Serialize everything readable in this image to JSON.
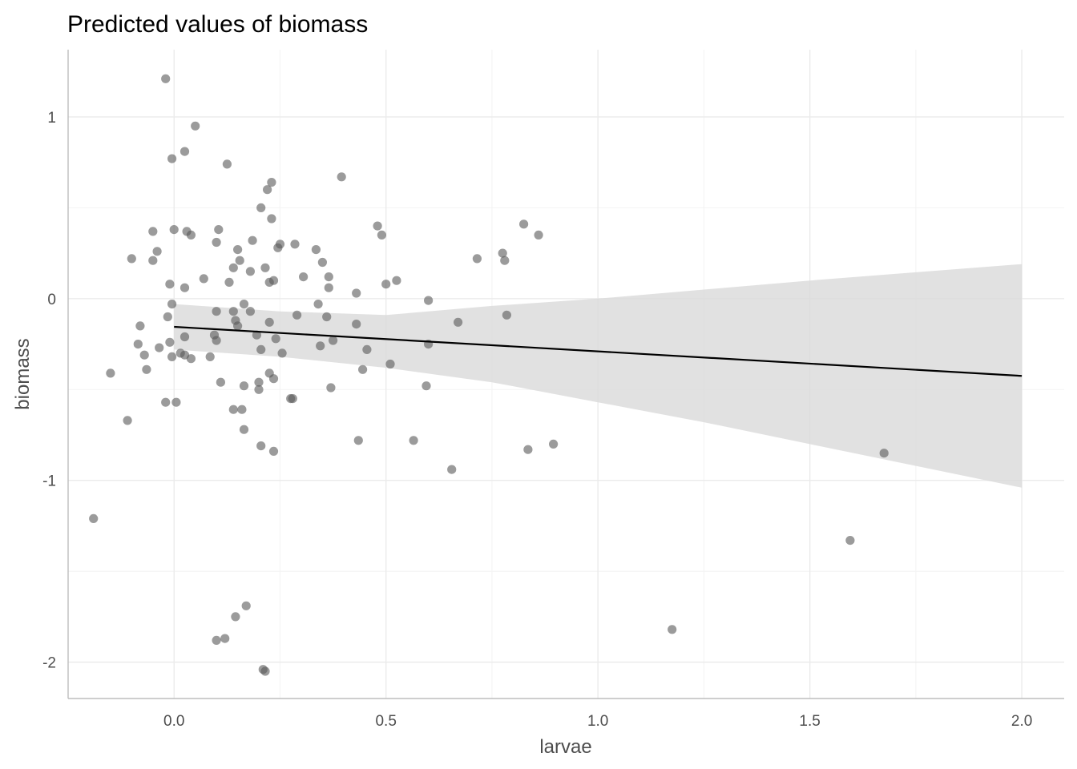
{
  "chart_data": {
    "type": "scatter",
    "title": "Predicted values of biomass",
    "xlabel": "larvae",
    "ylabel": "biomass",
    "xlim": [
      -0.25,
      2.1
    ],
    "ylim": [
      -2.2,
      1.37
    ],
    "x_ticks": [
      0.0,
      0.5,
      1.0,
      1.5,
      2.0
    ],
    "x_tick_labels": [
      "0.0",
      "0.5",
      "1.0",
      "1.5",
      "2.0"
    ],
    "y_ticks": [
      -2,
      -1,
      0,
      1
    ],
    "y_tick_labels": [
      "-2",
      "-1",
      "0",
      "1"
    ],
    "grid": true,
    "legend": "none",
    "colors": {
      "points": "#595959",
      "fit_line": "#000000",
      "ribbon": "#d9d9d9",
      "grid_major": "#ebebeb",
      "grid_minor": "#f4f4f4",
      "axis_line": "#bdbdbd"
    },
    "points": [
      [
        -0.02,
        1.21
      ],
      [
        0.05,
        0.95
      ],
      [
        0.025,
        0.81
      ],
      [
        -0.005,
        0.77
      ],
      [
        0.125,
        0.74
      ],
      [
        0.395,
        0.67
      ],
      [
        0.23,
        0.64
      ],
      [
        0.22,
        0.6
      ],
      [
        0.205,
        0.5
      ],
      [
        0.23,
        0.44
      ],
      [
        0.825,
        0.41
      ],
      [
        0.48,
        0.4
      ],
      [
        -0.05,
        0.37
      ],
      [
        0.0,
        0.38
      ],
      [
        0.03,
        0.37
      ],
      [
        0.04,
        0.35
      ],
      [
        0.105,
        0.38
      ],
      [
        0.49,
        0.35
      ],
      [
        0.86,
        0.35
      ],
      [
        0.185,
        0.32
      ],
      [
        0.1,
        0.31
      ],
      [
        0.25,
        0.3
      ],
      [
        0.285,
        0.3
      ],
      [
        0.245,
        0.28
      ],
      [
        0.335,
        0.27
      ],
      [
        0.15,
        0.27
      ],
      [
        -0.04,
        0.26
      ],
      [
        0.775,
        0.25
      ],
      [
        -0.1,
        0.22
      ],
      [
        0.715,
        0.22
      ],
      [
        0.78,
        0.21
      ],
      [
        -0.05,
        0.21
      ],
      [
        0.155,
        0.21
      ],
      [
        0.35,
        0.2
      ],
      [
        0.215,
        0.17
      ],
      [
        0.14,
        0.17
      ],
      [
        0.18,
        0.15
      ],
      [
        0.305,
        0.12
      ],
      [
        0.365,
        0.12
      ],
      [
        0.07,
        0.11
      ],
      [
        0.235,
        0.1
      ],
      [
        0.525,
        0.1
      ],
      [
        0.225,
        0.09
      ],
      [
        0.13,
        0.09
      ],
      [
        0.5,
        0.08
      ],
      [
        -0.01,
        0.08
      ],
      [
        0.365,
        0.06
      ],
      [
        0.025,
        0.06
      ],
      [
        0.43,
        0.03
      ],
      [
        0.6,
        -0.01
      ],
      [
        -0.005,
        -0.03
      ],
      [
        0.165,
        -0.03
      ],
      [
        0.34,
        -0.03
      ],
      [
        0.1,
        -0.07
      ],
      [
        0.14,
        -0.07
      ],
      [
        0.18,
        -0.07
      ],
      [
        0.785,
        -0.09
      ],
      [
        0.29,
        -0.09
      ],
      [
        0.36,
        -0.1
      ],
      [
        -0.015,
        -0.1
      ],
      [
        0.145,
        -0.12
      ],
      [
        0.225,
        -0.13
      ],
      [
        0.67,
        -0.13
      ],
      [
        0.43,
        -0.14
      ],
      [
        0.15,
        -0.15
      ],
      [
        -0.08,
        -0.15
      ],
      [
        0.195,
        -0.2
      ],
      [
        0.025,
        -0.21
      ],
      [
        0.095,
        -0.2
      ],
      [
        0.1,
        -0.23
      ],
      [
        0.24,
        -0.22
      ],
      [
        -0.01,
        -0.24
      ],
      [
        0.375,
        -0.23
      ],
      [
        0.6,
        -0.25
      ],
      [
        -0.085,
        -0.25
      ],
      [
        0.345,
        -0.26
      ],
      [
        -0.035,
        -0.27
      ],
      [
        0.205,
        -0.28
      ],
      [
        0.455,
        -0.28
      ],
      [
        0.015,
        -0.3
      ],
      [
        0.255,
        -0.3
      ],
      [
        -0.07,
        -0.31
      ],
      [
        0.025,
        -0.31
      ],
      [
        -0.005,
        -0.32
      ],
      [
        0.085,
        -0.32
      ],
      [
        0.04,
        -0.33
      ],
      [
        0.51,
        -0.36
      ],
      [
        -0.065,
        -0.39
      ],
      [
        0.445,
        -0.39
      ],
      [
        -0.15,
        -0.41
      ],
      [
        0.225,
        -0.41
      ],
      [
        0.235,
        -0.44
      ],
      [
        0.11,
        -0.46
      ],
      [
        0.2,
        -0.46
      ],
      [
        0.2,
        -0.5
      ],
      [
        0.165,
        -0.48
      ],
      [
        0.37,
        -0.49
      ],
      [
        0.595,
        -0.48
      ],
      [
        -0.02,
        -0.57
      ],
      [
        0.005,
        -0.57
      ],
      [
        0.275,
        -0.55
      ],
      [
        0.28,
        -0.55
      ],
      [
        0.14,
        -0.61
      ],
      [
        0.16,
        -0.61
      ],
      [
        -0.11,
        -0.67
      ],
      [
        0.165,
        -0.72
      ],
      [
        0.435,
        -0.78
      ],
      [
        0.565,
        -0.78
      ],
      [
        0.895,
        -0.8
      ],
      [
        0.205,
        -0.81
      ],
      [
        0.835,
        -0.83
      ],
      [
        0.235,
        -0.84
      ],
      [
        1.675,
        -0.85
      ],
      [
        0.655,
        -0.94
      ],
      [
        -0.19,
        -1.21
      ],
      [
        1.595,
        -1.33
      ],
      [
        0.17,
        -1.69
      ],
      [
        0.145,
        -1.75
      ],
      [
        1.175,
        -1.82
      ],
      [
        0.1,
        -1.88
      ],
      [
        0.12,
        -1.87
      ],
      [
        0.21,
        -2.04
      ],
      [
        0.215,
        -2.05
      ]
    ],
    "fit_line": {
      "x": [
        0.0,
        2.0
      ],
      "y": [
        -0.155,
        -0.425
      ]
    },
    "confidence_band": {
      "x": [
        0.0,
        0.25,
        0.5,
        0.75,
        1.0,
        1.25,
        1.5,
        1.75,
        2.0
      ],
      "upper": [
        -0.03,
        -0.07,
        -0.09,
        -0.04,
        0.0,
        0.05,
        0.1,
        0.145,
        0.19
      ],
      "lower": [
        -0.28,
        -0.32,
        -0.38,
        -0.46,
        -0.57,
        -0.68,
        -0.8,
        -0.92,
        -1.04
      ]
    }
  }
}
